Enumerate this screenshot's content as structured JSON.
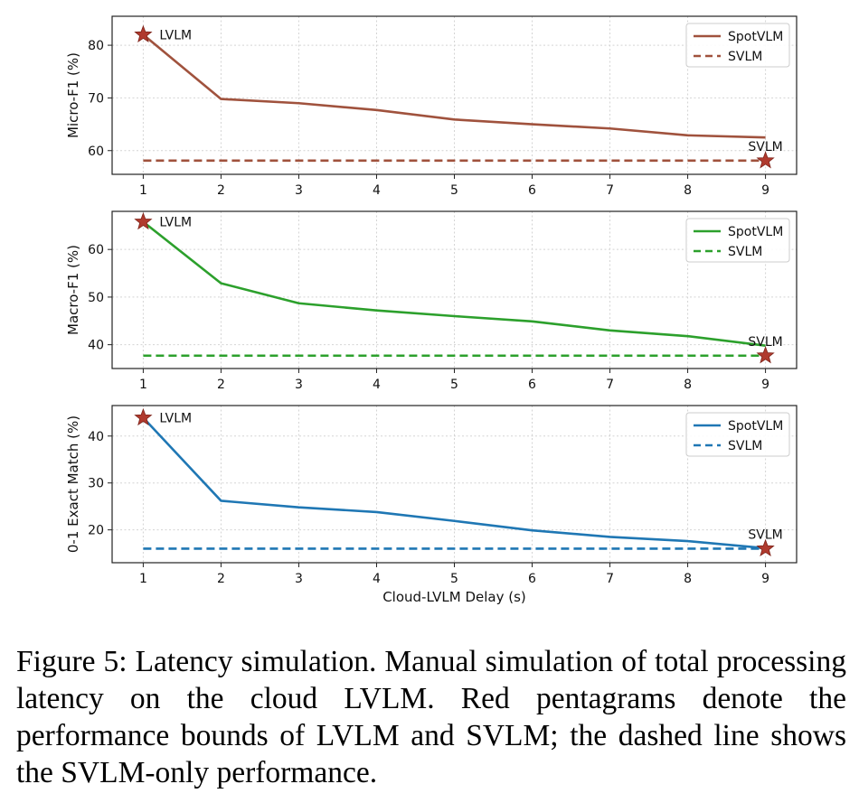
{
  "chart_data": [
    {
      "type": "line",
      "x": [
        1,
        2,
        3,
        4,
        5,
        6,
        7,
        8,
        9
      ],
      "xticks": [
        "1",
        "2",
        "3",
        "4",
        "5",
        "6",
        "7",
        "8",
        "9"
      ],
      "xlabel": "",
      "ylabel": "Micro-F1 (%)",
      "ylim": [
        55.5,
        85.5
      ],
      "yticks": [
        60,
        70,
        80
      ],
      "grid": true,
      "legend_position": "top-right",
      "series": [
        {
          "name": "SpotVLM",
          "style": "solid",
          "color": "#a0523d",
          "values": [
            82.0,
            69.8,
            69.0,
            67.7,
            65.9,
            65.0,
            64.2,
            62.9,
            62.5
          ]
        },
        {
          "name": "SVLM",
          "style": "dashed",
          "color": "#a0523d",
          "values": [
            58.1,
            58.1,
            58.1,
            58.1,
            58.1,
            58.1,
            58.1,
            58.1,
            58.1
          ]
        }
      ],
      "markers": [
        {
          "label": "LVLM",
          "x": 1,
          "y": 82.0,
          "color": "#b03a2e",
          "symbol": "star"
        },
        {
          "label": "SVLM",
          "x": 9,
          "y": 58.1,
          "color": "#b03a2e",
          "symbol": "star"
        }
      ]
    },
    {
      "type": "line",
      "x": [
        1,
        2,
        3,
        4,
        5,
        6,
        7,
        8,
        9
      ],
      "xticks": [
        "1",
        "2",
        "3",
        "4",
        "5",
        "6",
        "7",
        "8",
        "9"
      ],
      "xlabel": "",
      "ylabel": "Macro-F1 (%)",
      "ylim": [
        35,
        68
      ],
      "yticks": [
        40,
        50,
        60
      ],
      "grid": true,
      "legend_position": "top-right",
      "series": [
        {
          "name": "SpotVLM",
          "style": "solid",
          "color": "#2ca02c",
          "values": [
            65.8,
            52.9,
            48.7,
            47.2,
            46.0,
            44.9,
            43.0,
            41.8,
            39.8
          ]
        },
        {
          "name": "SVLM",
          "style": "dashed",
          "color": "#2ca02c",
          "values": [
            37.7,
            37.7,
            37.7,
            37.7,
            37.7,
            37.7,
            37.7,
            37.7,
            37.7
          ]
        }
      ],
      "markers": [
        {
          "label": "LVLM",
          "x": 1,
          "y": 65.8,
          "color": "#b03a2e",
          "symbol": "star"
        },
        {
          "label": "SVLM",
          "x": 9,
          "y": 37.7,
          "color": "#b03a2e",
          "symbol": "star"
        }
      ]
    },
    {
      "type": "line",
      "x": [
        1,
        2,
        3,
        4,
        5,
        6,
        7,
        8,
        9
      ],
      "xticks": [
        "1",
        "2",
        "3",
        "4",
        "5",
        "6",
        "7",
        "8",
        "9"
      ],
      "xlabel": "Cloud-LVLM Delay (s)",
      "ylabel": "0-1 Exact Match (%)",
      "ylim": [
        13,
        46.5
      ],
      "yticks": [
        20,
        30,
        40
      ],
      "grid": true,
      "legend_position": "top-right",
      "series": [
        {
          "name": "SpotVLM",
          "style": "solid",
          "color": "#1f77b4",
          "values": [
            43.9,
            26.2,
            24.8,
            23.8,
            21.9,
            19.9,
            18.5,
            17.6,
            16.1
          ]
        },
        {
          "name": "SVLM",
          "style": "dashed",
          "color": "#1f77b4",
          "values": [
            16.0,
            16.0,
            16.0,
            16.0,
            16.0,
            16.0,
            16.0,
            16.0,
            16.0
          ]
        }
      ],
      "markers": [
        {
          "label": "LVLM",
          "x": 1,
          "y": 43.9,
          "color": "#b03a2e",
          "symbol": "star"
        },
        {
          "label": "SVLM",
          "x": 9,
          "y": 16.0,
          "color": "#b03a2e",
          "symbol": "star"
        }
      ]
    }
  ],
  "caption": {
    "text": "Figure 5: Latency simulation. Manual simulation of total processing latency on the cloud LVLM. Red pentagrams denote the performance bounds of LVLM and SVLM; the dashed line shows the SVLM-only performance."
  }
}
